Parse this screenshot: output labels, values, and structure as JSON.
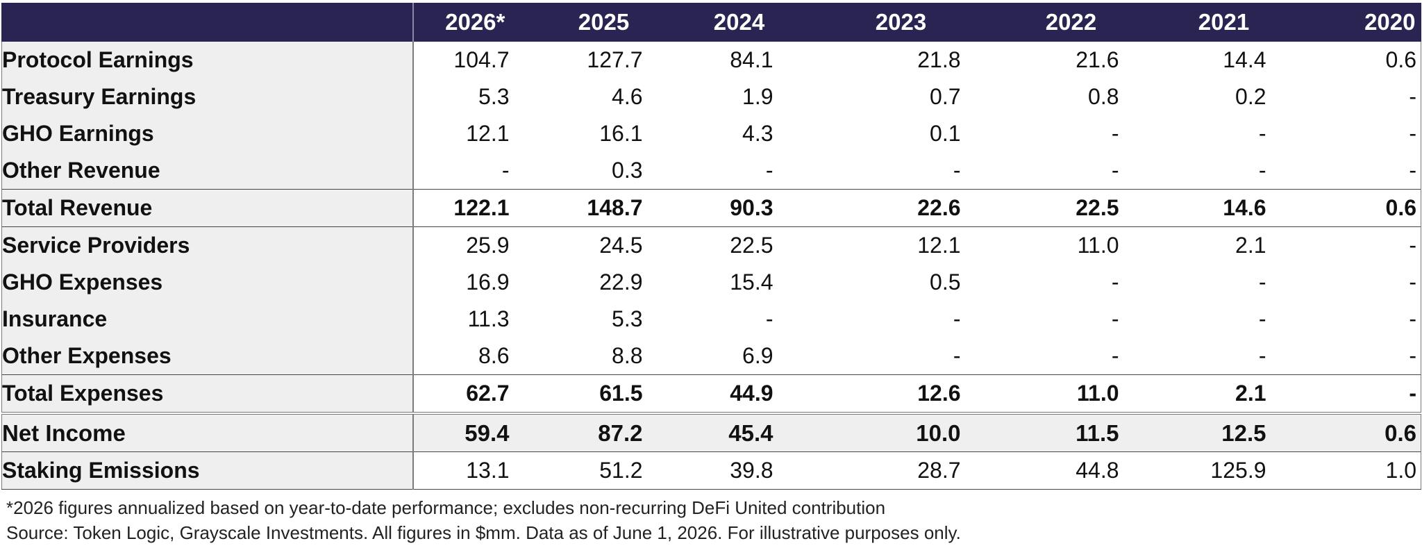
{
  "chart_data": {
    "type": "table",
    "columns": [
      "",
      "2026*",
      "2025",
      "2024",
      "2023",
      "2022",
      "2021",
      "2020"
    ],
    "rows": [
      {
        "label": "Protocol Earnings",
        "values": [
          "104.7",
          "127.7",
          "84.1",
          "21.8",
          "21.6",
          "14.4",
          "0.6"
        ]
      },
      {
        "label": "Treasury Earnings",
        "values": [
          "5.3",
          "4.6",
          "1.9",
          "0.7",
          "0.8",
          "0.2",
          "-"
        ]
      },
      {
        "label": "GHO Earnings",
        "values": [
          "12.1",
          "16.1",
          "4.3",
          "0.1",
          "-",
          "-",
          "-"
        ]
      },
      {
        "label": "Other Revenue",
        "values": [
          "-",
          "0.3",
          "-",
          "-",
          "-",
          "-",
          "-"
        ]
      },
      {
        "label": "Total Revenue",
        "values": [
          "122.1",
          "148.7",
          "90.3",
          "22.6",
          "22.5",
          "14.6",
          "0.6"
        ]
      },
      {
        "label": "Service Providers",
        "values": [
          "25.9",
          "24.5",
          "22.5",
          "12.1",
          "11.0",
          "2.1",
          "-"
        ]
      },
      {
        "label": "GHO Expenses",
        "values": [
          "16.9",
          "22.9",
          "15.4",
          "0.5",
          "-",
          "-",
          "-"
        ]
      },
      {
        "label": "Insurance",
        "values": [
          "11.3",
          "5.3",
          "-",
          "-",
          "-",
          "-",
          "-"
        ]
      },
      {
        "label": "Other Expenses",
        "values": [
          "8.6",
          "8.8",
          "6.9",
          "-",
          "-",
          "-",
          "-"
        ]
      },
      {
        "label": "Total Expenses",
        "values": [
          "62.7",
          "61.5",
          "44.9",
          "12.6",
          "11.0",
          "2.1",
          "-"
        ]
      },
      {
        "label": "Net Income",
        "values": [
          "59.4",
          "87.2",
          "45.4",
          "10.0",
          "11.5",
          "12.5",
          "0.6"
        ]
      },
      {
        "label": "Staking Emissions",
        "values": [
          "13.1",
          "51.2",
          "39.8",
          "28.7",
          "44.8",
          "125.9",
          "1.0"
        ]
      }
    ]
  },
  "notes": {
    "footnote": "*2026 figures annualized based on year-to-date performance; excludes non-recurring DeFi United contribution",
    "source": "Source: Token Logic, Grayscale Investments. All figures in $mm. Data as of June 1, 2026. For illustrative purposes only."
  },
  "colors": {
    "header_bg": "#2a2452",
    "header_text": "#ffffff",
    "label_bg": "#efefef"
  }
}
